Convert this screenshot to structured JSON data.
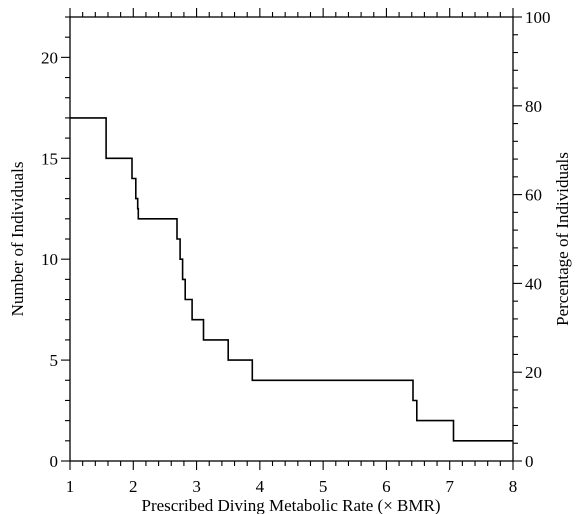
{
  "chart_data": {
    "type": "line",
    "step": true,
    "xlabel": "Prescribed Diving Metabolic Rate (× BMR)",
    "ylabel": "Number of Individuals",
    "y2label": "Percentage of Individuals",
    "xlim": [
      1,
      8
    ],
    "ylim": [
      0,
      22
    ],
    "y2lim": [
      0,
      100
    ],
    "x_ticks": [
      1,
      2,
      3,
      4,
      5,
      6,
      7,
      8
    ],
    "y_ticks": [
      0,
      5,
      10,
      15,
      20
    ],
    "y2_ticks": [
      0,
      20,
      40,
      60,
      80,
      100
    ],
    "grid": false,
    "series": [
      {
        "x": [
          1.0,
          1.57,
          1.57,
          1.98,
          1.98,
          2.04,
          2.04,
          2.07,
          2.07,
          2.08,
          2.08,
          2.69,
          2.69,
          2.74,
          2.74,
          2.78,
          2.78,
          2.82,
          2.82,
          2.93,
          2.93,
          2.95,
          2.95,
          3.11,
          3.11,
          3.5,
          3.5,
          3.88,
          3.88,
          6.42,
          6.42,
          6.48,
          6.48,
          7.06,
          7.06,
          8.0
        ],
        "y": [
          17,
          17,
          15,
          15,
          14,
          14,
          13,
          13,
          12.5,
          12.5,
          12,
          12,
          11,
          11,
          10,
          10,
          9,
          9,
          8,
          8,
          7,
          7,
          7,
          7,
          6,
          6,
          5,
          5,
          4,
          4,
          3,
          3,
          2,
          2,
          1,
          1
        ]
      }
    ]
  }
}
